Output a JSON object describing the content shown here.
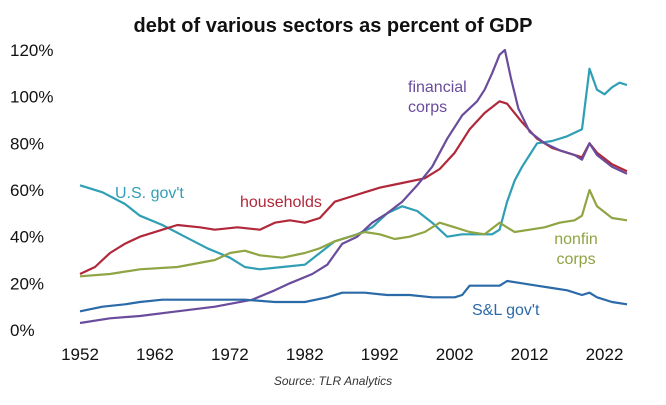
{
  "chart_data": {
    "type": "line",
    "title": "debt of various sectors as percent of GDP",
    "source": "Source: TLR Analytics",
    "xlabel": "",
    "ylabel": "",
    "xlim": [
      1952,
      2025
    ],
    "ylim": [
      0,
      120
    ],
    "x_ticks": [
      "1952",
      "1962",
      "1972",
      "1982",
      "1992",
      "2002",
      "2012",
      "2022"
    ],
    "y_ticks": [
      "0%",
      "20%",
      "40%",
      "60%",
      "80%",
      "100%",
      "120%"
    ],
    "grid": false,
    "series": [
      {
        "name": "U.S. gov't",
        "color": "#2f9fb5",
        "points": [
          [
            1952,
            62
          ],
          [
            1955,
            59
          ],
          [
            1958,
            54
          ],
          [
            1960,
            49
          ],
          [
            1963,
            45
          ],
          [
            1966,
            40
          ],
          [
            1969,
            35
          ],
          [
            1972,
            31
          ],
          [
            1974,
            27
          ],
          [
            1976,
            26
          ],
          [
            1979,
            27
          ],
          [
            1982,
            28
          ],
          [
            1984,
            33
          ],
          [
            1986,
            38
          ],
          [
            1989,
            41
          ],
          [
            1991,
            44
          ],
          [
            1993,
            50
          ],
          [
            1995,
            53
          ],
          [
            1997,
            51
          ],
          [
            1999,
            46
          ],
          [
            2001,
            40
          ],
          [
            2003,
            41
          ],
          [
            2005,
            41
          ],
          [
            2007,
            41
          ],
          [
            2008,
            43
          ],
          [
            2009,
            55
          ],
          [
            2010,
            64
          ],
          [
            2011,
            70
          ],
          [
            2012,
            75
          ],
          [
            2013,
            80
          ],
          [
            2015,
            81
          ],
          [
            2017,
            83
          ],
          [
            2019,
            86
          ],
          [
            2020,
            112
          ],
          [
            2021,
            103
          ],
          [
            2022,
            101
          ],
          [
            2023,
            104
          ],
          [
            2024,
            106
          ],
          [
            2025,
            105
          ]
        ]
      },
      {
        "name": "households",
        "color": "#b0283a",
        "points": [
          [
            1952,
            24
          ],
          [
            1954,
            27
          ],
          [
            1956,
            33
          ],
          [
            1958,
            37
          ],
          [
            1960,
            40
          ],
          [
            1963,
            43
          ],
          [
            1965,
            45
          ],
          [
            1968,
            44
          ],
          [
            1970,
            43
          ],
          [
            1973,
            44
          ],
          [
            1976,
            43
          ],
          [
            1978,
            46
          ],
          [
            1980,
            47
          ],
          [
            1982,
            46
          ],
          [
            1984,
            48
          ],
          [
            1986,
            55
          ],
          [
            1988,
            57
          ],
          [
            1990,
            59
          ],
          [
            1992,
            61
          ],
          [
            1995,
            63
          ],
          [
            1998,
            65
          ],
          [
            2000,
            69
          ],
          [
            2002,
            76
          ],
          [
            2004,
            86
          ],
          [
            2006,
            93
          ],
          [
            2008,
            98
          ],
          [
            2009,
            97
          ],
          [
            2011,
            89
          ],
          [
            2013,
            82
          ],
          [
            2015,
            78
          ],
          [
            2017,
            76
          ],
          [
            2019,
            74
          ],
          [
            2020,
            80
          ],
          [
            2021,
            76
          ],
          [
            2023,
            71
          ],
          [
            2025,
            68
          ]
        ]
      },
      {
        "name": "financial corps",
        "color": "#6a4c9c",
        "points": [
          [
            1952,
            3
          ],
          [
            1956,
            5
          ],
          [
            1960,
            6
          ],
          [
            1965,
            8
          ],
          [
            1970,
            10
          ],
          [
            1975,
            13
          ],
          [
            1978,
            17
          ],
          [
            1980,
            20
          ],
          [
            1983,
            24
          ],
          [
            1985,
            28
          ],
          [
            1987,
            37
          ],
          [
            1989,
            40
          ],
          [
            1991,
            46
          ],
          [
            1993,
            50
          ],
          [
            1995,
            55
          ],
          [
            1997,
            62
          ],
          [
            1999,
            70
          ],
          [
            2001,
            82
          ],
          [
            2003,
            92
          ],
          [
            2005,
            98
          ],
          [
            2006,
            103
          ],
          [
            2007,
            110
          ],
          [
            2008,
            118
          ],
          [
            2008.7,
            120
          ],
          [
            2009.5,
            108
          ],
          [
            2010.5,
            95
          ],
          [
            2012,
            85
          ],
          [
            2014,
            80
          ],
          [
            2016,
            77
          ],
          [
            2018,
            75
          ],
          [
            2019,
            73
          ],
          [
            2020,
            80
          ],
          [
            2021,
            75
          ],
          [
            2023,
            70
          ],
          [
            2025,
            67
          ]
        ]
      },
      {
        "name": "nonfin corps",
        "color": "#8fa442",
        "points": [
          [
            1952,
            23
          ],
          [
            1956,
            24
          ],
          [
            1960,
            26
          ],
          [
            1965,
            27
          ],
          [
            1970,
            30
          ],
          [
            1972,
            33
          ],
          [
            1974,
            34
          ],
          [
            1976,
            32
          ],
          [
            1979,
            31
          ],
          [
            1982,
            33
          ],
          [
            1984,
            35
          ],
          [
            1986,
            38
          ],
          [
            1988,
            40
          ],
          [
            1990,
            42
          ],
          [
            1992,
            41
          ],
          [
            1994,
            39
          ],
          [
            1996,
            40
          ],
          [
            1998,
            42
          ],
          [
            2000,
            46
          ],
          [
            2002,
            44
          ],
          [
            2004,
            42
          ],
          [
            2006,
            41
          ],
          [
            2008,
            46
          ],
          [
            2010,
            42
          ],
          [
            2012,
            43
          ],
          [
            2014,
            44
          ],
          [
            2016,
            46
          ],
          [
            2018,
            47
          ],
          [
            2019,
            49
          ],
          [
            2020,
            60
          ],
          [
            2021,
            53
          ],
          [
            2023,
            48
          ],
          [
            2025,
            47
          ]
        ]
      },
      {
        "name": "S&L gov't",
        "color": "#2b6aa8",
        "points": [
          [
            1952,
            8
          ],
          [
            1955,
            10
          ],
          [
            1958,
            11
          ],
          [
            1960,
            12
          ],
          [
            1963,
            13
          ],
          [
            1966,
            13
          ],
          [
            1970,
            13
          ],
          [
            1974,
            13
          ],
          [
            1978,
            12
          ],
          [
            1982,
            12
          ],
          [
            1985,
            14
          ],
          [
            1987,
            16
          ],
          [
            1990,
            16
          ],
          [
            1993,
            15
          ],
          [
            1996,
            15
          ],
          [
            1999,
            14
          ],
          [
            2002,
            14
          ],
          [
            2003,
            15
          ],
          [
            2004,
            19
          ],
          [
            2006,
            19
          ],
          [
            2008,
            19
          ],
          [
            2009,
            21
          ],
          [
            2011,
            20
          ],
          [
            2013,
            19
          ],
          [
            2015,
            18
          ],
          [
            2017,
            17
          ],
          [
            2019,
            15
          ],
          [
            2020,
            16
          ],
          [
            2021,
            14
          ],
          [
            2023,
            12
          ],
          [
            2025,
            11
          ]
        ]
      }
    ]
  }
}
